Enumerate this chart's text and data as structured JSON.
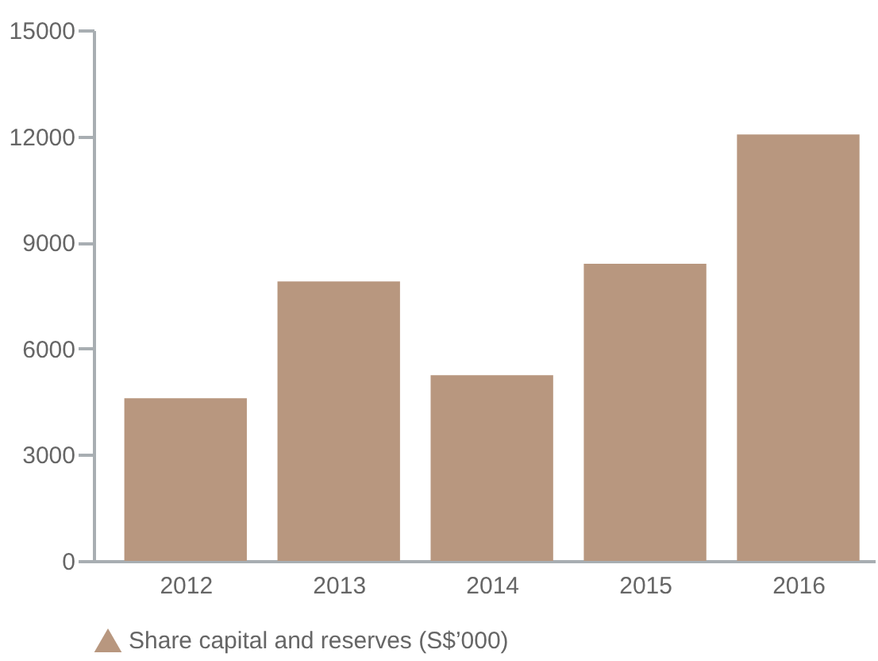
{
  "chart_data": {
    "type": "bar",
    "categories": [
      "2012",
      "2013",
      "2014",
      "2015",
      "2016"
    ],
    "series": [
      {
        "name": "Share capital and reserves (S$’000)",
        "color": "#b8977f",
        "values": [
          4600,
          7900,
          5250,
          8400,
          12050
        ]
      }
    ],
    "ylim": [
      0,
      15000
    ],
    "yticks": [
      0,
      3000,
      6000,
      9000,
      12000,
      15000
    ],
    "grid": false,
    "legend": "bottom"
  }
}
